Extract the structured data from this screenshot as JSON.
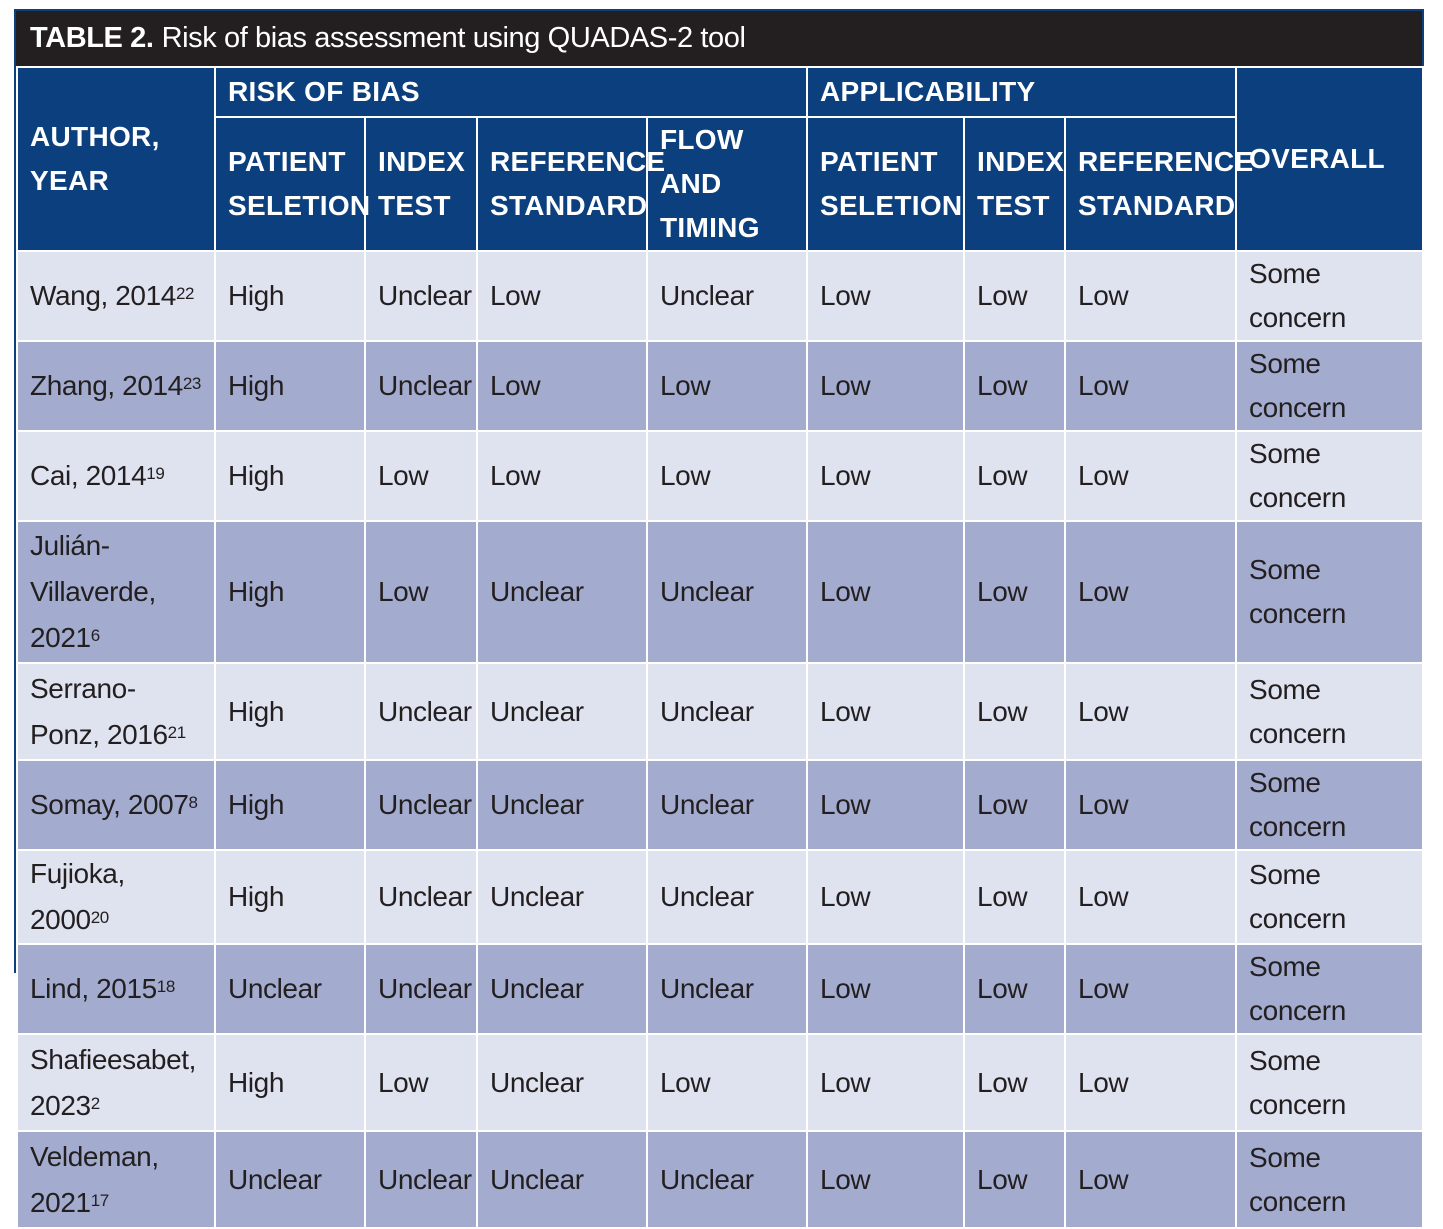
{
  "caption": {
    "label": "TABLE 2.",
    "title": "Risk of bias assessment using QUADAS-2 tool"
  },
  "header": {
    "author": "AUTHOR, YEAR",
    "risk_group": "RISK OF BIAS",
    "applicability_group": "APPLICABILITY",
    "overall": "OVERALL",
    "risk_cols": [
      "PATIENT SELETION",
      "INDEX TEST",
      "REFERENCE STANDARD",
      "FLOW AND TIMING"
    ],
    "app_cols": [
      "PATIENT SELETION",
      "INDEX TEST",
      "REFERENCE STANDARD"
    ]
  },
  "rows": [
    {
      "author": "Wang, 2014",
      "ref": "22",
      "cells": [
        "High",
        "Unclear",
        "Low",
        "Unclear",
        "Low",
        "Low",
        "Low",
        "Some concern"
      ]
    },
    {
      "author": "Zhang, 2014",
      "ref": "23",
      "cells": [
        "High",
        "Unclear",
        "Low",
        "Low",
        "Low",
        "Low",
        "Low",
        "Some concern"
      ]
    },
    {
      "author": "Cai, 2014",
      "ref": "19",
      "cells": [
        "High",
        "Low",
        "Low",
        "Low",
        "Low",
        "Low",
        "Low",
        "Some concern"
      ]
    },
    {
      "author": "Julián-Villaverde, 2021",
      "ref": "6",
      "cells": [
        "High",
        "Low",
        "Unclear",
        "Unclear",
        "Low",
        "Low",
        "Low",
        "Some concern"
      ]
    },
    {
      "author": "Serrano-Ponz, 2016",
      "ref": "21",
      "cells": [
        "High",
        "Unclear",
        "Unclear",
        "Unclear",
        "Low",
        "Low",
        "Low",
        "Some concern"
      ]
    },
    {
      "author": "Somay, 2007",
      "ref": "8",
      "cells": [
        "High",
        "Unclear",
        "Unclear",
        "Unclear",
        "Low",
        "Low",
        "Low",
        "Some concern"
      ]
    },
    {
      "author": "Fujioka, 2000",
      "ref": "20",
      "cells": [
        "High",
        "Unclear",
        "Unclear",
        "Unclear",
        "Low",
        "Low",
        "Low",
        "Some concern"
      ]
    },
    {
      "author": "Lind, 2015",
      "ref": "18",
      "cells": [
        "Unclear",
        "Unclear",
        "Unclear",
        "Unclear",
        "Low",
        "Low",
        "Low",
        "Some concern"
      ]
    },
    {
      "author": "Shafieesabet, 2023",
      "ref": "2",
      "cells": [
        "High",
        "Low",
        "Unclear",
        "Low",
        "Low",
        "Low",
        "Low",
        "Some concern"
      ]
    },
    {
      "author": "Veldeman, 2021",
      "ref": "17",
      "cells": [
        "Unclear",
        "Unclear",
        "Unclear",
        "Unclear",
        "Low",
        "Low",
        "Low",
        "Some concern"
      ]
    }
  ]
}
